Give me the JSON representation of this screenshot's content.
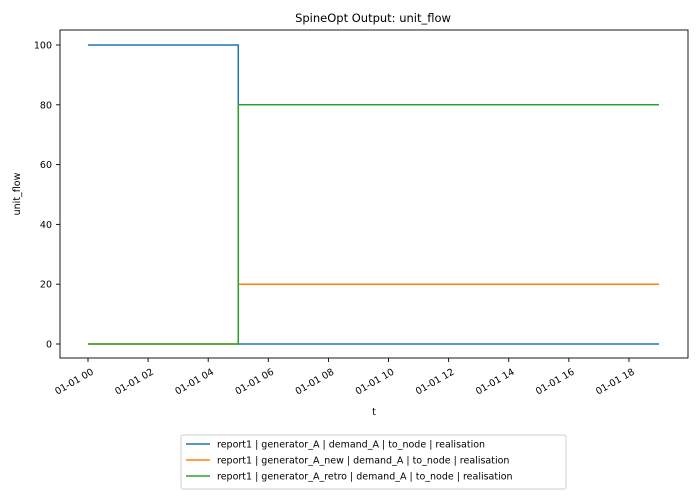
{
  "chart_data": {
    "type": "line",
    "title": "SpineOpt Output: unit_flow",
    "xlabel": "t",
    "ylabel": "unit_flow",
    "x_ticks": [
      "01-01 00",
      "01-01 02",
      "01-01 04",
      "01-01 06",
      "01-01 08",
      "01-01 10",
      "01-01 12",
      "01-01 14",
      "01-01 16",
      "01-01 18"
    ],
    "y_ticks": [
      "0",
      "20",
      "40",
      "60",
      "80",
      "100"
    ],
    "xlim": [
      "01-01 00",
      "01-01 19"
    ],
    "ylim": [
      0,
      100
    ],
    "step": "post",
    "grid": false,
    "legend_position": "below",
    "series": [
      {
        "name": "report1 | generator_A | demand_A | to_node | realisation",
        "color": "#1f77b4",
        "points": [
          [
            "01-01 00",
            100
          ],
          [
            "01-01 05",
            0
          ],
          [
            "01-01 19",
            0
          ]
        ]
      },
      {
        "name": "report1 | generator_A_new | demand_A | to_node | realisation",
        "color": "#ff7f0e",
        "points": [
          [
            "01-01 00",
            0
          ],
          [
            "01-01 05",
            20
          ],
          [
            "01-01 19",
            20
          ]
        ]
      },
      {
        "name": "report1 | generator_A_retro | demand_A | to_node | realisation",
        "color": "#2ca02c",
        "points": [
          [
            "01-01 00",
            0
          ],
          [
            "01-01 05",
            80
          ],
          [
            "01-01 19",
            80
          ]
        ]
      }
    ]
  }
}
